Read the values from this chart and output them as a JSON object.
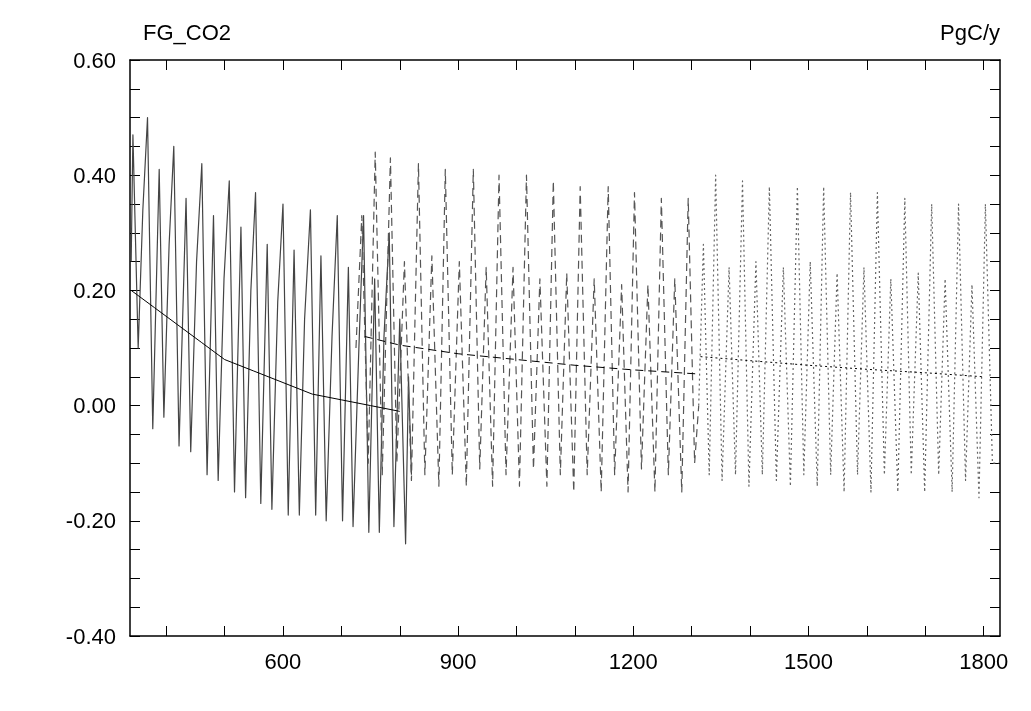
{
  "chart_data": {
    "type": "line",
    "title": "FG_CO2",
    "ylabel": "PgC/y",
    "xlim": [
      338,
      1828
    ],
    "xticks": [
      {
        "value": 400,
        "label": null
      },
      {
        "value": 500,
        "label": null
      },
      600,
      {
        "value": 700,
        "label": null
      },
      {
        "value": 800,
        "label": null
      },
      900,
      {
        "value": 1000,
        "label": null
      },
      {
        "value": 1100,
        "label": null
      },
      1200,
      {
        "value": 1300,
        "label": null
      },
      {
        "value": 1400,
        "label": null
      },
      1500,
      {
        "value": 1600,
        "label": null
      },
      {
        "value": 1700,
        "label": null
      },
      1800
    ],
    "ylim": [
      -0.4,
      0.6
    ],
    "yticks": [
      {
        "value": -0.4,
        "label": "-0.40"
      },
      {
        "value": -0.35,
        "label": null
      },
      {
        "value": -0.3,
        "label": null
      },
      {
        "value": -0.25,
        "label": null
      },
      {
        "value": -0.2,
        "label": "-0.20"
      },
      {
        "value": -0.15,
        "label": null
      },
      {
        "value": -0.1,
        "label": null
      },
      {
        "value": -0.05,
        "label": null
      },
      {
        "value": 0,
        "label": "0.00"
      },
      {
        "value": 0.05,
        "label": null
      },
      {
        "value": 0.1,
        "label": null
      },
      {
        "value": 0.15,
        "label": null
      },
      {
        "value": 0.2,
        "label": "0.20"
      },
      {
        "value": 0.25,
        "label": null
      },
      {
        "value": 0.3,
        "label": null
      },
      {
        "value": 0.35,
        "label": null
      },
      {
        "value": 0.4,
        "label": "0.40"
      },
      {
        "value": 0.45,
        "label": null
      },
      {
        "value": 0.5,
        "label": null
      },
      {
        "value": 0.55,
        "label": null
      },
      {
        "value": 0.6,
        "label": "0.60"
      }
    ],
    "grid": false,
    "legend": false,
    "marker": "none",
    "series": [
      {
        "color": "#444444",
        "line_style": "solid",
        "x": [
          340,
          343,
          352,
          360,
          368,
          377,
          388,
          396,
          405,
          413,
          422,
          434,
          442,
          452,
          461,
          470,
          481,
          489,
          499,
          508,
          517,
          528,
          536,
          545,
          553,
          562,
          573,
          581,
          591,
          600,
          609,
          619,
          628,
          637,
          647,
          656,
          665,
          674,
          684,
          693,
          702,
          712,
          720,
          730,
          738,
          747,
          757,
          765,
          773,
          782,
          790,
          800,
          810,
          815,
          820
        ],
        "values": [
          0.25,
          0.47,
          0.1,
          0.34,
          0.5,
          -0.04,
          0.41,
          -0.02,
          0.28,
          0.45,
          -0.07,
          0.36,
          -0.08,
          0.25,
          0.42,
          -0.12,
          0.33,
          -0.13,
          0.22,
          0.39,
          -0.15,
          0.31,
          -0.16,
          0.2,
          0.37,
          -0.17,
          0.28,
          -0.18,
          0.18,
          0.35,
          -0.19,
          0.27,
          -0.19,
          0.15,
          0.34,
          -0.19,
          0.26,
          -0.2,
          0.12,
          0.33,
          -0.2,
          0.24,
          -0.21,
          0.1,
          0.33,
          -0.22,
          0.22,
          -0.22,
          0.12,
          0.3,
          -0.21,
          0.15,
          -0.24,
          0.05,
          -0.12
        ]
      },
      {
        "color": "#555555",
        "line_style": "dashed",
        "x": [
          725,
          735,
          746,
          758,
          770,
          784,
          795,
          808,
          820,
          832,
          843,
          855,
          867,
          878,
          890,
          902,
          914,
          926,
          937,
          948,
          959,
          970,
          982,
          994,
          1005,
          1017,
          1029,
          1040,
          1052,
          1063,
          1075,
          1086,
          1098,
          1109,
          1121,
          1133,
          1145,
          1157,
          1168,
          1180,
          1191,
          1202,
          1214,
          1225,
          1237,
          1248,
          1260,
          1271,
          1283,
          1294,
          1305,
          1312
        ],
        "values": [
          0.1,
          0.33,
          -0.1,
          0.44,
          -0.12,
          0.43,
          -0.1,
          0.25,
          -0.13,
          0.42,
          -0.12,
          0.26,
          -0.14,
          0.41,
          -0.12,
          0.25,
          -0.14,
          0.41,
          -0.11,
          0.24,
          -0.14,
          0.4,
          -0.12,
          0.24,
          -0.14,
          0.4,
          -0.11,
          0.22,
          -0.14,
          0.39,
          -0.12,
          0.23,
          -0.15,
          0.38,
          -0.12,
          0.22,
          -0.15,
          0.38,
          -0.12,
          0.21,
          -0.15,
          0.37,
          -0.11,
          0.21,
          -0.15,
          0.36,
          -0.12,
          0.22,
          -0.15,
          0.36,
          -0.1,
          0.0
        ]
      },
      {
        "color": "#666666",
        "line_style": "dotted",
        "x": [
          1312,
          1320,
          1330,
          1341,
          1352,
          1364,
          1375,
          1387,
          1398,
          1410,
          1421,
          1433,
          1445,
          1457,
          1469,
          1481,
          1492,
          1503,
          1515,
          1526,
          1538,
          1549,
          1561,
          1572,
          1584,
          1595,
          1607,
          1618,
          1630,
          1641,
          1653,
          1665,
          1676,
          1688,
          1699,
          1711,
          1723,
          1734,
          1746,
          1757,
          1769,
          1780,
          1792,
          1803,
          1815,
          1826
        ],
        "values": [
          0.0,
          0.28,
          -0.12,
          0.4,
          -0.13,
          0.24,
          -0.12,
          0.39,
          -0.14,
          0.25,
          -0.12,
          0.38,
          -0.13,
          0.24,
          -0.14,
          0.38,
          -0.12,
          0.25,
          -0.14,
          0.38,
          -0.12,
          0.23,
          -0.15,
          0.37,
          -0.12,
          0.24,
          -0.15,
          0.37,
          -0.12,
          0.22,
          -0.15,
          0.36,
          -0.12,
          0.23,
          -0.15,
          0.35,
          -0.12,
          0.22,
          -0.15,
          0.35,
          -0.13,
          0.21,
          -0.16,
          0.35,
          -0.1,
          -0.1
        ]
      },
      {
        "color": "#000000",
        "line_style": "solid",
        "x": [
          340,
          380,
          420,
          460,
          500,
          550,
          600,
          650,
          700,
          750,
          800
        ],
        "values": [
          0.2,
          0.17,
          0.14,
          0.11,
          0.08,
          0.06,
          0.04,
          0.02,
          0.01,
          0.0,
          -0.01
        ]
      },
      {
        "color": "#000000",
        "line_style": "dashed",
        "x": [
          740,
          800,
          900,
          1000,
          1100,
          1200,
          1310
        ],
        "values": [
          0.12,
          0.105,
          0.09,
          0.08,
          0.07,
          0.062,
          0.055
        ]
      },
      {
        "color": "#000000",
        "line_style": "dotted",
        "x": [
          1315,
          1400,
          1500,
          1600,
          1700,
          1800
        ],
        "values": [
          0.085,
          0.078,
          0.07,
          0.063,
          0.057,
          0.05
        ]
      }
    ]
  }
}
